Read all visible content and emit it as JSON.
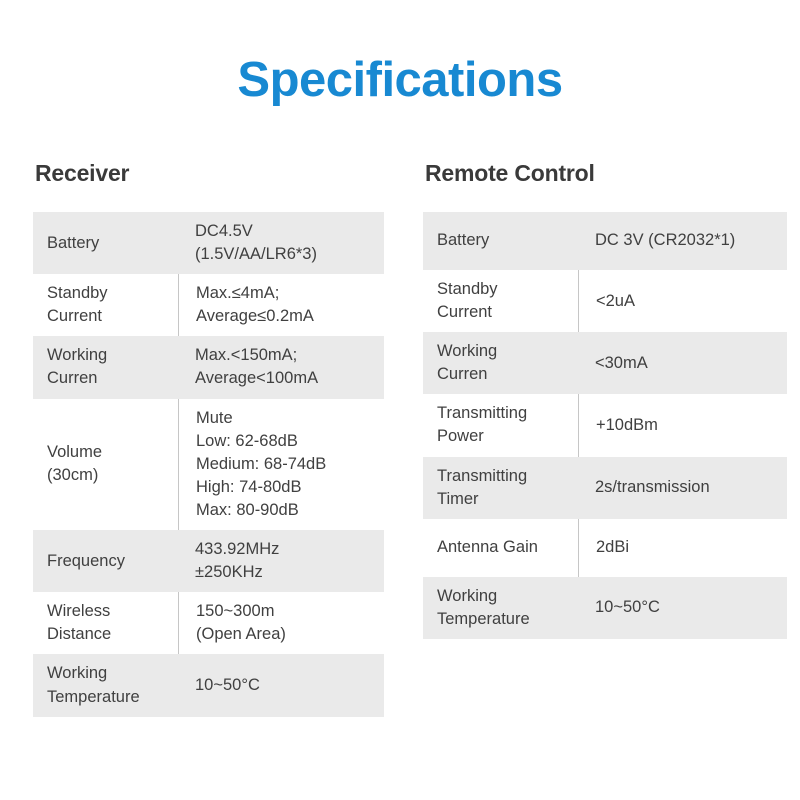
{
  "title": "Specifications",
  "colors": {
    "accent_blue": "#1889d2",
    "row_shade_gray": "#eaeaea",
    "divider_gray": "#c6c6c6",
    "text_dark": "#404040"
  },
  "receiver": {
    "heading": "Receiver",
    "rows": [
      {
        "label": "Battery",
        "value": "DC4.5V\n(1.5V/AA/LR6*3)"
      },
      {
        "label": "Standby\nCurrent",
        "value": "Max.≤4mA;\nAverage≤0.2mA"
      },
      {
        "label": "Working\nCurren",
        "value": "Max.<150mA;\nAverage<100mA"
      },
      {
        "label": "Volume\n(30cm)",
        "value": "Mute\nLow: 62-68dB\nMedium: 68-74dB\nHigh: 74-80dB\nMax: 80-90dB"
      },
      {
        "label": "Frequency",
        "value": "433.92MHz\n±250KHz"
      },
      {
        "label": "Wireless\nDistance",
        "value": "150~300m\n(Open Area)"
      },
      {
        "label": "Working\nTemperature",
        "value": "10~50°C"
      }
    ]
  },
  "remote": {
    "heading": "Remote Control",
    "rows": [
      {
        "label": "Battery",
        "value": "DC 3V (CR2032*1)"
      },
      {
        "label": "Standby\nCurrent",
        "value": "<2uA"
      },
      {
        "label": "Working\nCurren",
        "value": "<30mA"
      },
      {
        "label": "Transmitting\nPower",
        "value": "+10dBm"
      },
      {
        "label": "Transmitting\nTimer",
        "value": "2s/transmission"
      },
      {
        "label": "Antenna Gain",
        "value": "2dBi"
      },
      {
        "label": "Working\nTemperature",
        "value": "10~50°C"
      }
    ]
  }
}
